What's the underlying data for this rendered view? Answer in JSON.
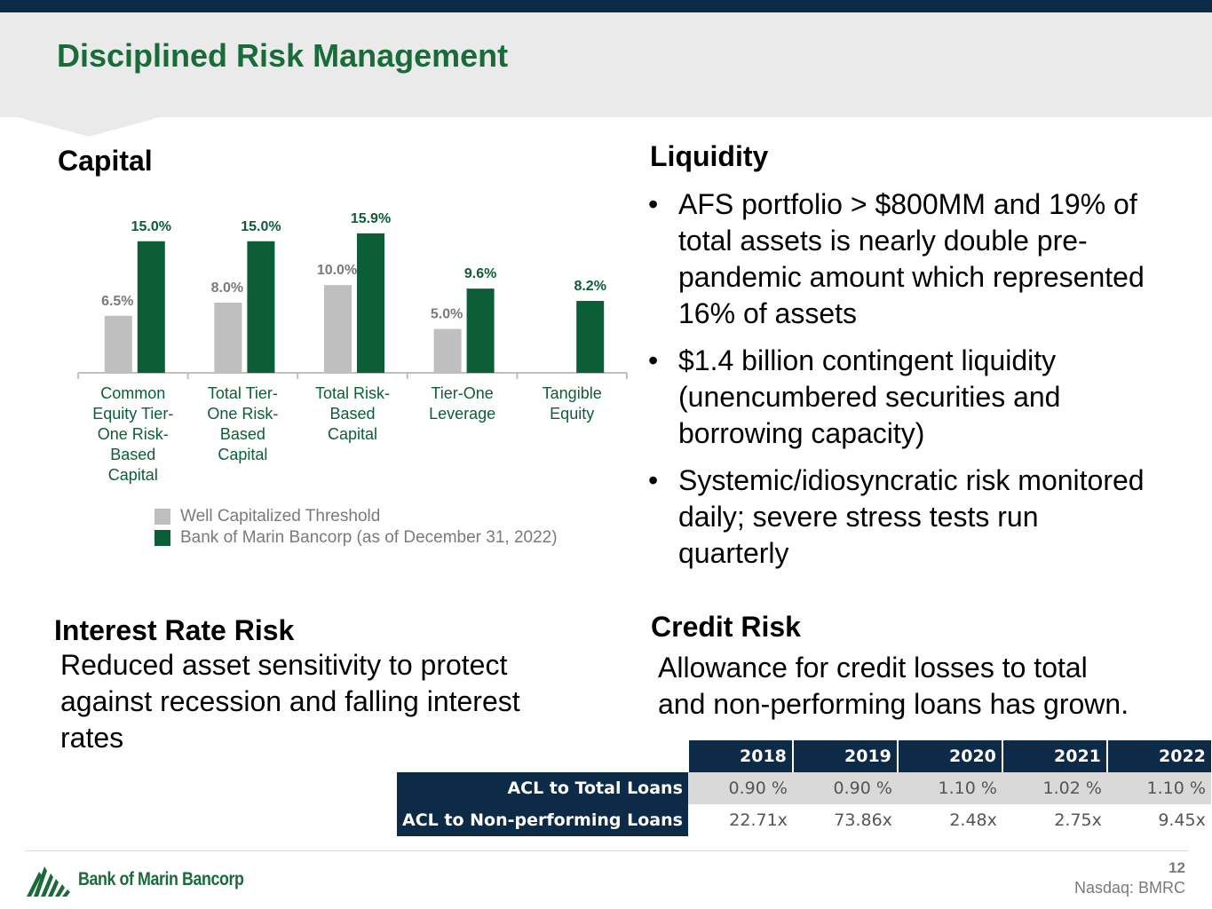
{
  "title": "Disciplined Risk Management",
  "capital": {
    "heading": "Capital",
    "legend": [
      {
        "label": "Well Capitalized Threshold",
        "color": "#bfbfbf"
      },
      {
        "label": "Bank of Marin Bancorp (as of December 31, 2022)",
        "color": "#0b5e36"
      }
    ]
  },
  "chart_data": {
    "type": "bar",
    "categories": [
      [
        "Common",
        "Equity Tier-",
        "One Risk-",
        "Based",
        "Capital"
      ],
      [
        "Total Tier-",
        "One Risk-",
        "Based",
        "Capital"
      ],
      [
        "Total Risk-",
        "Based",
        "Capital"
      ],
      [
        "Tier-One",
        "Leverage"
      ],
      [
        "Tangible",
        "Equity"
      ]
    ],
    "series": [
      {
        "name": "Well Capitalized Threshold",
        "values": [
          6.5,
          8.0,
          10.0,
          5.0,
          null
        ],
        "labels": [
          "6.5%",
          "8.0%",
          "10.0%",
          "5.0%",
          ""
        ],
        "color": "#bfbfbf",
        "label_color": "#7a7a7a"
      },
      {
        "name": "Bank of Marin Bancorp (as of December 31, 2022)",
        "values": [
          15.0,
          15.0,
          15.9,
          9.6,
          8.2
        ],
        "labels": [
          "15.0%",
          "15.0%",
          "15.9%",
          "9.6%",
          "8.2%"
        ],
        "color": "#0b5e36",
        "label_color": "#0b5e36"
      }
    ],
    "ylim": [
      0,
      17
    ]
  },
  "liquidity": {
    "heading": "Liquidity",
    "bullets": [
      {
        "lines": [
          "AFS portfolio > $800MM and 19% of",
          "total assets is nearly double pre-",
          "pandemic amount which represented",
          "16% of assets"
        ]
      },
      {
        "lines": [
          "$1.4 billion contingent liquidity",
          "(unencumbered securities and",
          "borrowing capacity)"
        ]
      },
      {
        "lines": [
          "Systemic/idiosyncratic risk monitored",
          "daily; severe stress tests run",
          "quarterly"
        ]
      }
    ]
  },
  "interest_rate": {
    "heading": "Interest Rate Risk",
    "lines": [
      "Reduced asset sensitivity to protect",
      "against recession and falling interest",
      "rates"
    ]
  },
  "credit_risk": {
    "heading": "Credit Risk",
    "lines": [
      "Allowance for credit losses to total",
      "and non-performing loans has grown."
    ],
    "table": {
      "years": [
        "2018",
        "2019",
        "2020",
        "2021",
        "2022"
      ],
      "rows": [
        {
          "label": "ACL to Total Loans",
          "values": [
            "0.90 %",
            "0.90 %",
            "1.10 %",
            "1.02 %",
            "1.10 %"
          ]
        },
        {
          "label": "ACL to Non-performing Loans",
          "values": [
            "22.71x",
            "73.86x",
            "2.48x",
            "2.75x",
            "9.45x"
          ]
        }
      ]
    }
  },
  "footer": {
    "logo_text": "Bank of Marin Bancorp",
    "page_number": "12",
    "ticker": "Nasdaq: BMRC"
  }
}
